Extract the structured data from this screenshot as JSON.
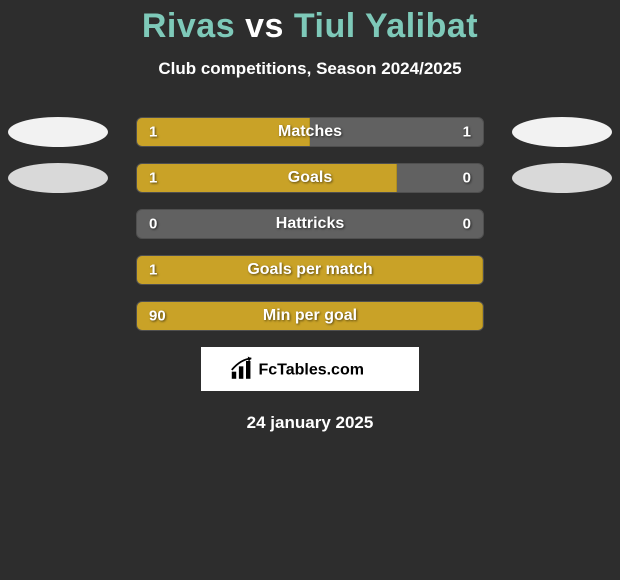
{
  "title": {
    "player1": "Rivas",
    "vs": "vs",
    "player2": "Tiul Yalibat"
  },
  "subtitle": "Club competitions, Season 2024/2025",
  "colors": {
    "accent_teal": "#7ec9b9",
    "bar_left": "#c9a227",
    "bar_left_border": "#b08f1f",
    "bar_empty": "#616161",
    "bar_empty_border": "#4f4f4f",
    "oval_white": "#f2f2f2",
    "oval_gray": "#d9d9d9",
    "text": "#ffffff"
  },
  "stats": [
    {
      "label": "Matches",
      "left_value": "1",
      "right_value": "1",
      "left_pct": 50,
      "right_pct": 50,
      "left_color": "#c9a227",
      "right_color": "#616161",
      "show_ovals": true,
      "left_oval_color": "#f2f2f2",
      "right_oval_color": "#f2f2f2"
    },
    {
      "label": "Goals",
      "left_value": "1",
      "right_value": "0",
      "left_pct": 75,
      "right_pct": 25,
      "left_color": "#c9a227",
      "right_color": "#616161",
      "show_ovals": true,
      "left_oval_color": "#d9d9d9",
      "right_oval_color": "#d9d9d9"
    },
    {
      "label": "Hattricks",
      "left_value": "0",
      "right_value": "0",
      "left_pct": 0,
      "right_pct": 0,
      "left_color": "#c9a227",
      "right_color": "#616161",
      "show_ovals": false
    },
    {
      "label": "Goals per match",
      "left_value": "1",
      "right_value": "",
      "left_pct": 100,
      "right_pct": 0,
      "left_color": "#c9a227",
      "right_color": "#616161",
      "show_ovals": false
    },
    {
      "label": "Min per goal",
      "left_value": "90",
      "right_value": "",
      "left_pct": 100,
      "right_pct": 0,
      "left_color": "#c9a227",
      "right_color": "#616161",
      "show_ovals": false
    }
  ],
  "brand": {
    "icon": "bar-chart-icon",
    "text": "FcTables.com"
  },
  "date": "24 january 2025"
}
